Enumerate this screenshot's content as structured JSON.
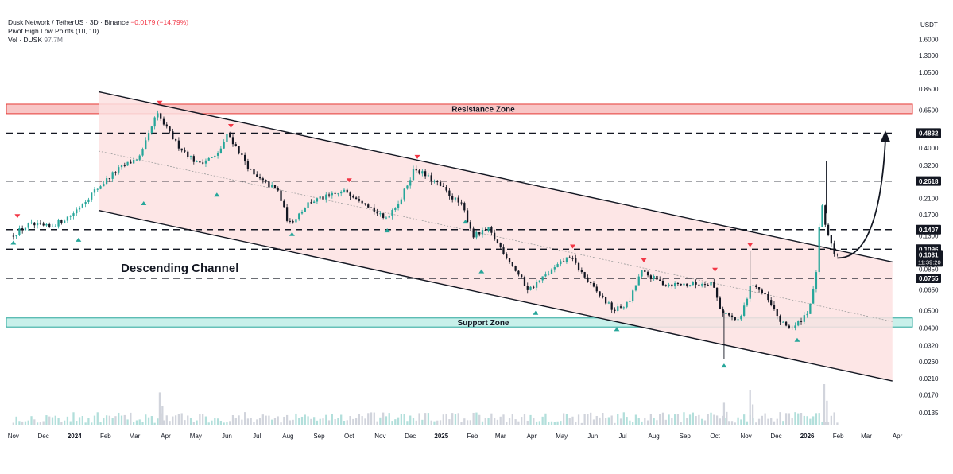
{
  "header": {
    "symbol": "Dusk Network / TetherUS · 3D · Binance",
    "change": "−0.0179 (−14.79%)",
    "indicator": "Pivot High Low Points (10, 10)",
    "volume_label": "Vol · DUSK",
    "volume_value": "97.7M"
  },
  "colors": {
    "up": "#26a69a",
    "down": "#131722",
    "pivot_high": "#f23645",
    "pivot_low": "#26a69a",
    "resistance_zone": "#f8c6c6",
    "support_zone": "#c8f0ea",
    "channel_fill": "#fde2e2"
  },
  "chart_data": {
    "type": "candlestick",
    "title": "Dusk Network / TetherUS · 3D · Binance",
    "y_unit": "USDT",
    "y_scale": "log",
    "ylim": [
      0.0115,
      2.3
    ],
    "y_ticks": [
      "1.6000",
      "1.3000",
      "1.0500",
      "0.8500",
      "0.6500",
      "0.4000",
      "0.3200",
      "0.2100",
      "0.1700",
      "0.1300",
      "0.0850",
      "0.0650",
      "0.0500",
      "0.0400",
      "0.0320",
      "0.0260",
      "0.0210",
      "0.0170",
      "0.0135"
    ],
    "x_ticks": [
      "Nov",
      "Dec",
      "2024",
      "Feb",
      "Mar",
      "Apr",
      "May",
      "Jun",
      "Jul",
      "Aug",
      "Sep",
      "Oct",
      "Nov",
      "Dec",
      "2025",
      "Feb",
      "Mar",
      "Apr",
      "May",
      "Jun",
      "Jul",
      "Aug",
      "Sep",
      "Oct",
      "Nov",
      "Dec",
      "2026",
      "Feb",
      "Mar",
      "Apr"
    ],
    "price_levels": [
      {
        "value": 0.4832,
        "label": "0.4832"
      },
      {
        "value": 0.2618,
        "label": "0.2618"
      },
      {
        "value": 0.1407,
        "label": "0.1407"
      },
      {
        "value": 0.1096,
        "label": "0.1096"
      },
      {
        "value": 0.0755,
        "label": "0.0755"
      }
    ],
    "current_price": {
      "value": 0.1031,
      "label": "0.1031",
      "countdown": "11:39:20"
    },
    "zones": [
      {
        "name": "Resistance Zone",
        "low": 0.62,
        "high": 0.7
      },
      {
        "name": "Support Zone",
        "low": 0.0405,
        "high": 0.0455
      }
    ],
    "channel": {
      "name": "Descending Channel",
      "upper": [
        {
          "date": "2024-01-25",
          "price": 0.82
        },
        {
          "date": "2026-03-27",
          "price": 0.093
        }
      ],
      "lower": [
        {
          "date": "2024-01-25",
          "price": 0.18
        },
        {
          "date": "2026-03-27",
          "price": 0.0203
        }
      ]
    },
    "projection_arrow": {
      "from": {
        "date": "2026-01-31",
        "price": 0.1
      },
      "to": {
        "date": "2026-03-20",
        "price": 0.48
      }
    },
    "anchors": [
      {
        "date": "2023-11-01",
        "price": 0.13
      },
      {
        "date": "2023-11-20",
        "price": 0.15
      },
      {
        "date": "2023-12-10",
        "price": 0.145
      },
      {
        "date": "2024-01-01",
        "price": 0.17
      },
      {
        "date": "2024-01-20",
        "price": 0.22
      },
      {
        "date": "2024-02-15",
        "price": 0.3
      },
      {
        "date": "2024-03-10",
        "price": 0.36
      },
      {
        "date": "2024-03-26",
        "price": 0.62
      },
      {
        "date": "2024-04-15",
        "price": 0.42
      },
      {
        "date": "2024-05-05",
        "price": 0.33
      },
      {
        "date": "2024-05-25",
        "price": 0.36
      },
      {
        "date": "2024-06-05",
        "price": 0.48
      },
      {
        "date": "2024-07-01",
        "price": 0.28
      },
      {
        "date": "2024-07-25",
        "price": 0.23
      },
      {
        "date": "2024-08-05",
        "price": 0.15
      },
      {
        "date": "2024-08-25",
        "price": 0.2
      },
      {
        "date": "2024-10-01",
        "price": 0.23
      },
      {
        "date": "2024-10-20",
        "price": 0.2
      },
      {
        "date": "2024-11-08",
        "price": 0.16
      },
      {
        "date": "2024-11-25",
        "price": 0.21
      },
      {
        "date": "2024-12-08",
        "price": 0.31
      },
      {
        "date": "2025-01-01",
        "price": 0.25
      },
      {
        "date": "2025-01-25",
        "price": 0.19
      },
      {
        "date": "2025-02-05",
        "price": 0.13
      },
      {
        "date": "2025-02-20",
        "price": 0.14
      },
      {
        "date": "2025-03-10",
        "price": 0.1
      },
      {
        "date": "2025-04-01",
        "price": 0.065
      },
      {
        "date": "2025-04-20",
        "price": 0.08
      },
      {
        "date": "2025-05-12",
        "price": 0.1
      },
      {
        "date": "2025-06-01",
        "price": 0.07
      },
      {
        "date": "2025-06-25",
        "price": 0.05
      },
      {
        "date": "2025-07-10",
        "price": 0.055
      },
      {
        "date": "2025-07-22",
        "price": 0.082
      },
      {
        "date": "2025-08-15",
        "price": 0.07
      },
      {
        "date": "2025-09-15",
        "price": 0.07
      },
      {
        "date": "2025-10-01",
        "price": 0.072
      },
      {
        "date": "2025-10-10",
        "price": 0.05
      },
      {
        "date": "2025-10-28",
        "price": 0.043
      },
      {
        "date": "2025-11-10",
        "price": 0.072
      },
      {
        "date": "2025-11-25",
        "price": 0.058
      },
      {
        "date": "2025-12-10",
        "price": 0.042
      },
      {
        "date": "2025-12-22",
        "price": 0.04
      },
      {
        "date": "2026-01-05",
        "price": 0.05
      },
      {
        "date": "2026-01-12",
        "price": 0.07
      },
      {
        "date": "2026-01-18",
        "price": 0.2
      },
      {
        "date": "2026-01-24",
        "price": 0.13
      },
      {
        "date": "2026-01-28",
        "price": 0.12
      },
      {
        "date": "2026-01-31",
        "price": 0.1031
      }
    ],
    "pivot_highs": [
      {
        "date": "2023-11-05",
        "price": 0.155
      },
      {
        "date": "2024-03-26",
        "price": 0.66
      },
      {
        "date": "2024-06-05",
        "price": 0.49
      },
      {
        "date": "2024-10-01",
        "price": 0.245
      },
      {
        "date": "2024-12-08",
        "price": 0.33
      },
      {
        "date": "2025-05-12",
        "price": 0.105
      },
      {
        "date": "2025-07-22",
        "price": 0.088
      },
      {
        "date": "2025-10-01",
        "price": 0.078
      },
      {
        "date": "2025-11-05",
        "price": 0.107
      }
    ],
    "pivot_lows": [
      {
        "date": "2023-11-01",
        "price": 0.13
      },
      {
        "date": "2024-01-05",
        "price": 0.135
      },
      {
        "date": "2024-03-10",
        "price": 0.215
      },
      {
        "date": "2024-05-22",
        "price": 0.24
      },
      {
        "date": "2024-08-05",
        "price": 0.145
      },
      {
        "date": "2024-11-08",
        "price": 0.152
      },
      {
        "date": "2025-01-25",
        "price": 0.17
      },
      {
        "date": "2025-02-10",
        "price": 0.09
      },
      {
        "date": "2025-04-05",
        "price": 0.053
      },
      {
        "date": "2025-06-25",
        "price": 0.043
      },
      {
        "date": "2025-10-10",
        "price": 0.027
      },
      {
        "date": "2025-12-22",
        "price": 0.0375
      }
    ],
    "spikes": [
      {
        "date": "2025-10-10",
        "low": 0.027
      },
      {
        "date": "2025-11-05",
        "high": 0.107
      },
      {
        "date": "2026-01-20",
        "high": 0.34
      }
    ],
    "volume_peaks": [
      {
        "date": "2024-03-26",
        "level": 0.8
      },
      {
        "date": "2025-10-10",
        "level": 0.55
      },
      {
        "date": "2025-11-05",
        "level": 0.85
      },
      {
        "date": "2026-01-18",
        "level": 1.0
      }
    ],
    "grid": false
  }
}
